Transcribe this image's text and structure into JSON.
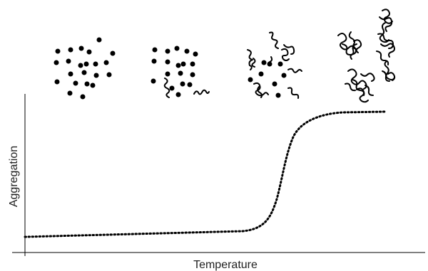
{
  "axes": {
    "x_label": "Temperature",
    "y_label": "Aggregation"
  },
  "colors": {
    "ink": "#000000",
    "label": "#222222",
    "background": "#ffffff"
  },
  "stages": [
    {
      "name": "dispersed-particles",
      "particles": "dots only"
    },
    {
      "name": "particles-with-few-chains",
      "particles": "dots and a few short chains"
    },
    {
      "name": "particles-with-many-chains",
      "particles": "chains forming small clusters"
    },
    {
      "name": "aggregated-network",
      "particles": "dense entangled clusters"
    }
  ]
}
